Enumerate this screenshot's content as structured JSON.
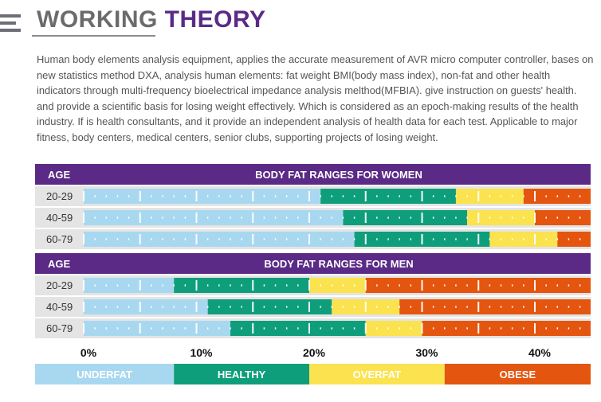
{
  "header": {
    "title_part1": "WORKING",
    "title_part2": "THEORY",
    "description": "Human body elements analysis equipment, applies the accurate measurement of AVR micro computer controller, bases on new statistics method DXA, analysis human elements: fat weight BMI(body mass index), non-fat and other health indicators through multi-frequency bioelectrical impedance analysis melthod(MFBIA). give instruction on guests' health. and provide a scientific basis for losing weight effectively. Which is considered as an epoch-making results of the health industry. If is health consultants, and it provide an independent analysis of health data for each test. Applicable to major fitness, body centers, medical centers, senior clubs, supporting projects of losing weight."
  },
  "colors": {
    "underfat": "#a8d8f0",
    "healthy": "#0f9e7b",
    "overfat": "#fbe24f",
    "obese": "#e4550f",
    "header_bg": "#5b2a86",
    "row_bg": "#e4e4e4"
  },
  "chart_data": {
    "type": "bar",
    "stacked": true,
    "orientation": "horizontal",
    "xlim": [
      0,
      45
    ],
    "x_ticks": [
      {
        "value": 0,
        "label": "0%"
      },
      {
        "value": 10,
        "label": "10%"
      },
      {
        "value": 20,
        "label": "20%"
      },
      {
        "value": 30,
        "label": "30%"
      },
      {
        "value": 40,
        "label": "40%"
      }
    ],
    "age_label": "AGE",
    "legend": [
      "UNDERFAT",
      "HEALTHY",
      "OVERFAT",
      "OBESE"
    ],
    "groups": [
      {
        "title": "BODY FAT RANGES FOR WOMEN",
        "rows": [
          {
            "age": "20-29",
            "underfat_max": 21,
            "healthy_max": 33,
            "overfat_max": 39
          },
          {
            "age": "40-59",
            "underfat_max": 23,
            "healthy_max": 34,
            "overfat_max": 40
          },
          {
            "age": "60-79",
            "underfat_max": 24,
            "healthy_max": 36,
            "overfat_max": 42
          }
        ]
      },
      {
        "title": "BODY FAT RANGES FOR MEN",
        "rows": [
          {
            "age": "20-29",
            "underfat_max": 8,
            "healthy_max": 20,
            "overfat_max": 25
          },
          {
            "age": "40-59",
            "underfat_max": 11,
            "healthy_max": 22,
            "overfat_max": 28
          },
          {
            "age": "60-79",
            "underfat_max": 13,
            "healthy_max": 25,
            "overfat_max": 30
          }
        ]
      }
    ]
  }
}
